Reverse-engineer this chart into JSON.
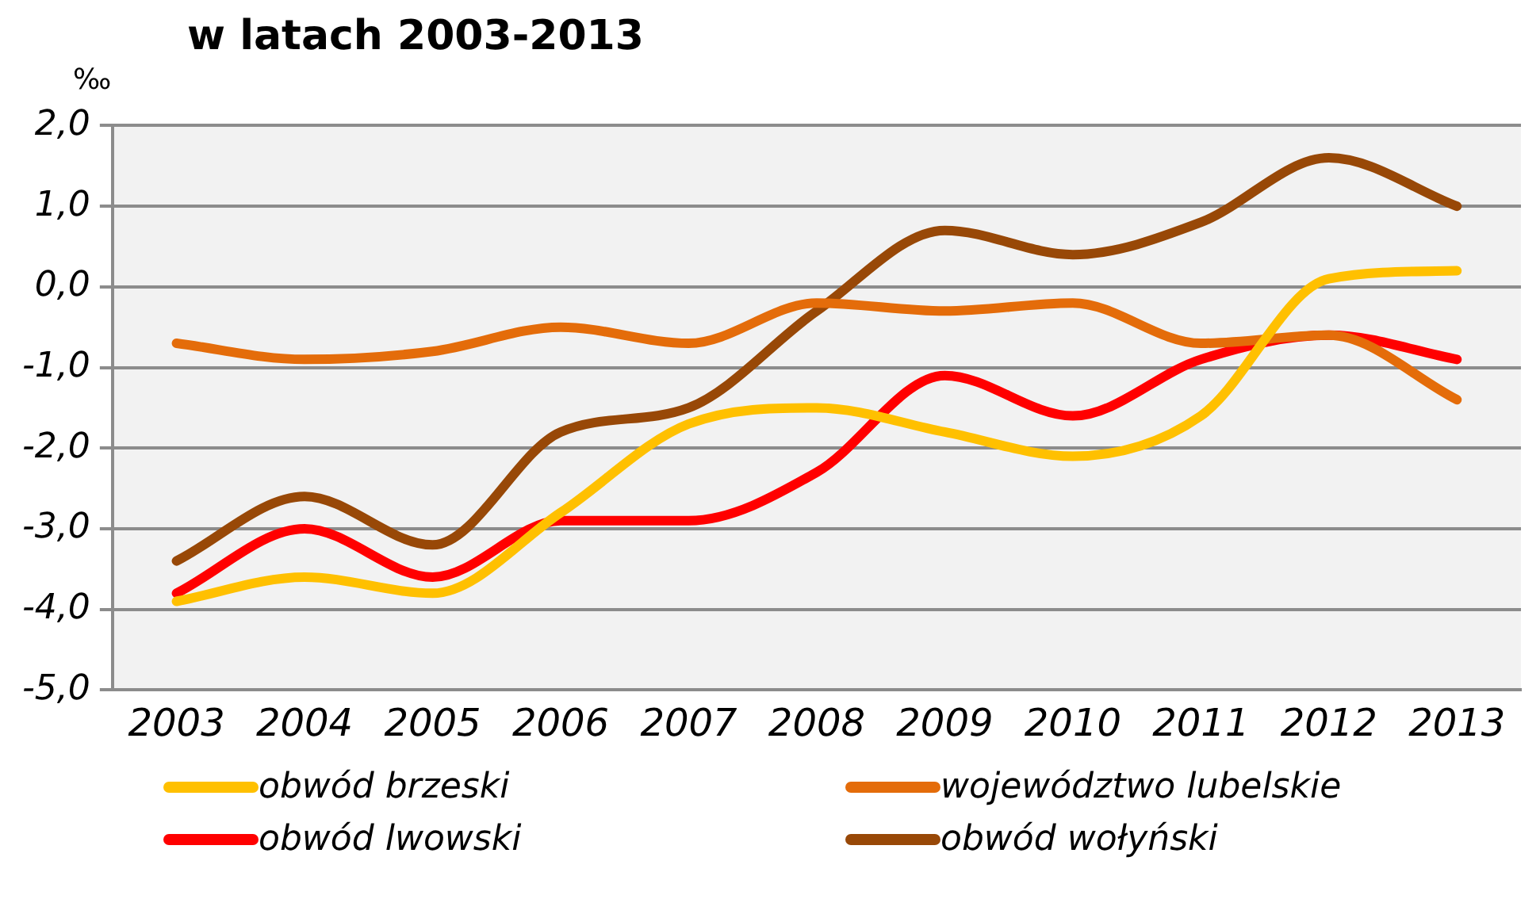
{
  "chart_data": {
    "type": "line",
    "title": "w latach 2003-2013",
    "ylabel": "‰",
    "categories": [
      "2003",
      "2004",
      "2005",
      "2006",
      "2007",
      "2008",
      "2009",
      "2010",
      "2011",
      "2012",
      "2013"
    ],
    "series": [
      {
        "name": "obwód brzeski",
        "color": "#ffc000",
        "values": [
          -3.9,
          -3.6,
          -3.8,
          -2.8,
          -1.7,
          -1.5,
          -1.8,
          -2.1,
          -1.6,
          0.1,
          0.2
        ]
      },
      {
        "name": "województwo lubelskie",
        "color": "#e46c0a",
        "values": [
          -0.7,
          -0.9,
          -0.8,
          -0.5,
          -0.7,
          -0.2,
          -0.3,
          -0.2,
          -0.7,
          -0.6,
          -1.4
        ]
      },
      {
        "name": "obwód lwowski",
        "color": "#ff0000",
        "values": [
          -3.8,
          -3.0,
          -3.6,
          -2.9,
          -2.9,
          -2.3,
          -1.1,
          -1.6,
          -0.9,
          -0.6,
          -0.9
        ]
      },
      {
        "name": "obwód wołyński",
        "color": "#984807",
        "values": [
          -3.4,
          -2.6,
          -3.2,
          -1.8,
          -1.5,
          -0.3,
          0.7,
          0.4,
          0.8,
          1.6,
          1.0
        ]
      }
    ],
    "ylim": [
      -5,
      2
    ],
    "yticks": [
      {
        "value": -5,
        "label": "-5,0"
      },
      {
        "value": -4,
        "label": "-4,0"
      },
      {
        "value": -3,
        "label": "-3,0"
      },
      {
        "value": -2,
        "label": "-2,0"
      },
      {
        "value": -1,
        "label": "-1,0"
      },
      {
        "value": 0,
        "label": "0,0"
      },
      {
        "value": 1,
        "label": "1,0"
      },
      {
        "value": 2,
        "label": "2,0"
      }
    ],
    "grid": "y",
    "legend": "bottom",
    "marker": "none",
    "line_style": "solid"
  }
}
